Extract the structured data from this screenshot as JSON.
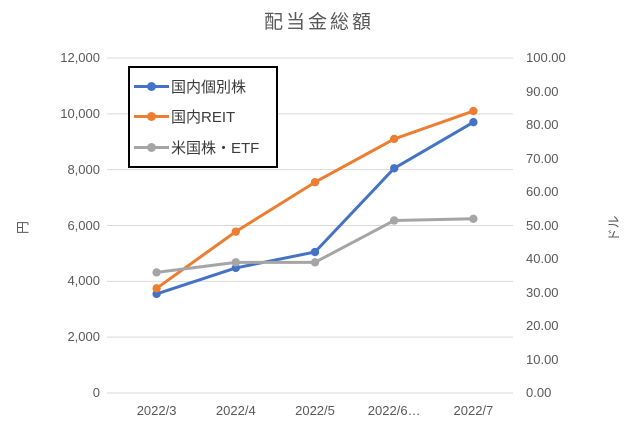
{
  "chart_data": {
    "type": "line",
    "title": "配当金総額",
    "categories": [
      "2022/3",
      "2022/4",
      "2022/5",
      "2022/6…",
      "2022/7"
    ],
    "series": [
      {
        "name": "国内個別株",
        "axis": "left",
        "color": "#4472C4",
        "values": [
          3550,
          4480,
          5050,
          8050,
          9700
        ]
      },
      {
        "name": "国内REIT",
        "axis": "left",
        "color": "#ED7D31",
        "values": [
          3750,
          5780,
          7550,
          9100,
          10100
        ]
      },
      {
        "name": "米国株・ETF",
        "axis": "right",
        "color": "#A5A5A5",
        "values": [
          36,
          39,
          39,
          51.5,
          52
        ]
      }
    ],
    "left_axis": {
      "label": "円",
      "min": 0,
      "max": 12000,
      "ticks": [
        "0",
        "2,000",
        "4,000",
        "6,000",
        "8,000",
        "10,000",
        "12,000"
      ]
    },
    "right_axis": {
      "label": "ドル",
      "min": 0,
      "max": 100,
      "ticks": [
        "0.00",
        "10.00",
        "20.00",
        "30.00",
        "40.00",
        "50.00",
        "60.00",
        "70.00",
        "80.00",
        "90.00",
        "100.00"
      ]
    },
    "legend_position": "top-left-inside",
    "grid": true,
    "colors": {
      "gridline": "#D9D9D9",
      "axis_text": "#595959",
      "title_text": "#595959",
      "legend_border": "#000000",
      "background": "#FFFFFF"
    }
  }
}
